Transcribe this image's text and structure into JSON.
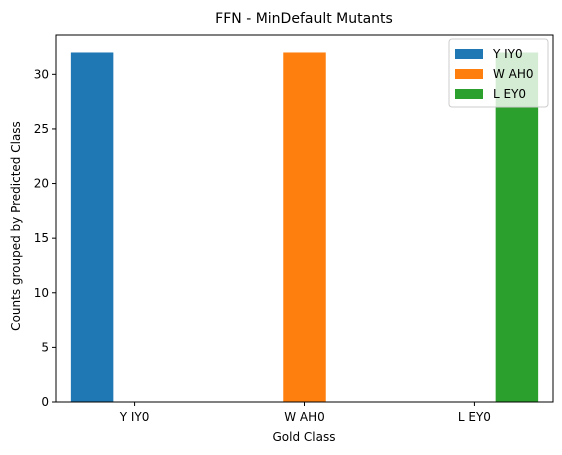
{
  "chart_data": {
    "type": "bar",
    "title": "FFN - MinDefault Mutants",
    "xlabel": "Gold Class",
    "ylabel": "Counts grouped by Predicted Class",
    "categories": [
      "Y IY0",
      "W AH0",
      "L EY0"
    ],
    "series": [
      {
        "name": "Y IY0",
        "values": [
          32,
          0,
          0
        ],
        "color": "#1f77b4"
      },
      {
        "name": "W AH0",
        "values": [
          0,
          32,
          0
        ],
        "color": "#ff7f0e"
      },
      {
        "name": "L EY0",
        "values": [
          0,
          0,
          32
        ],
        "color": "#2ca02c"
      }
    ],
    "yticks": [
      0,
      5,
      10,
      15,
      20,
      25,
      30
    ],
    "ylim": [
      0,
      33.6
    ],
    "grid": false,
    "legend_position": "top-right"
  }
}
